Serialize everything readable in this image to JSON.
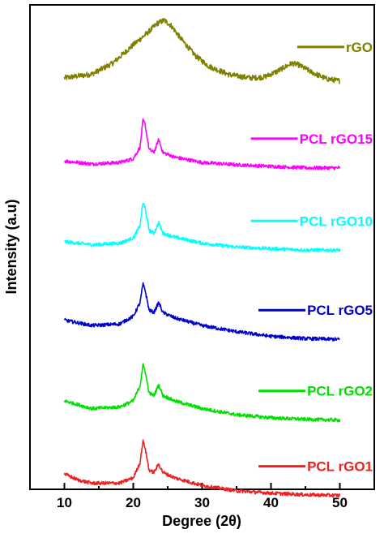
{
  "chart_data": {
    "type": "line",
    "xlabel": "Degree (2θ)",
    "ylabel": "Intensity (a.u)",
    "xlim": [
      5,
      55
    ],
    "xticks": [
      10,
      20,
      30,
      40,
      50
    ],
    "ylim": [
      0,
      6.3
    ],
    "y_ticks_labeled": false,
    "grid": false,
    "legend": "inline labels to the right of each curve",
    "series": [
      {
        "name": "rGO",
        "color": "#808000",
        "offset": 5.3,
        "points": [
          [
            10,
            0.05
          ],
          [
            14,
            0.1
          ],
          [
            17,
            0.24
          ],
          [
            20,
            0.48
          ],
          [
            22,
            0.63
          ],
          [
            23.5,
            0.76
          ],
          [
            24.5,
            0.8
          ],
          [
            25.5,
            0.73
          ],
          [
            27,
            0.55
          ],
          [
            29,
            0.34
          ],
          [
            31,
            0.2
          ],
          [
            34,
            0.09
          ],
          [
            37,
            0.05
          ],
          [
            39,
            0.06
          ],
          [
            41,
            0.14
          ],
          [
            43,
            0.24
          ],
          [
            44,
            0.22
          ],
          [
            46,
            0.12
          ],
          [
            48,
            0.04
          ],
          [
            50,
            0.01
          ]
        ]
      },
      {
        "name": "PCL rGO15",
        "color": "#ff00ff",
        "offset": 4.2,
        "points": [
          [
            10,
            0.07
          ],
          [
            14,
            0.03
          ],
          [
            18,
            0.05
          ],
          [
            20,
            0.1
          ],
          [
            21,
            0.25
          ],
          [
            21.4,
            0.6
          ],
          [
            21.7,
            0.55
          ],
          [
            22.3,
            0.22
          ],
          [
            23,
            0.18
          ],
          [
            23.7,
            0.35
          ],
          [
            24.3,
            0.18
          ],
          [
            26,
            0.12
          ],
          [
            30,
            0.05
          ],
          [
            35,
            0.02
          ],
          [
            40,
            0.0
          ],
          [
            45,
            -0.02
          ],
          [
            50,
            -0.02
          ]
        ]
      },
      {
        "name": "PCL rGO10",
        "color": "#00ffff",
        "offset": 3.15,
        "points": [
          [
            10,
            0.07
          ],
          [
            14,
            0.03
          ],
          [
            18,
            0.05
          ],
          [
            20,
            0.12
          ],
          [
            21,
            0.28
          ],
          [
            21.4,
            0.58
          ],
          [
            21.7,
            0.52
          ],
          [
            22.3,
            0.22
          ],
          [
            23,
            0.18
          ],
          [
            23.7,
            0.32
          ],
          [
            24.3,
            0.18
          ],
          [
            26,
            0.13
          ],
          [
            30,
            0.05
          ],
          [
            35,
            0.0
          ],
          [
            40,
            -0.02
          ],
          [
            45,
            -0.04
          ],
          [
            50,
            -0.04
          ]
        ]
      },
      {
        "name": "PCL rGO5",
        "color": "#0000cc",
        "offset": 2.05,
        "points": [
          [
            10,
            0.15
          ],
          [
            14,
            0.08
          ],
          [
            18,
            0.1
          ],
          [
            20,
            0.2
          ],
          [
            21,
            0.38
          ],
          [
            21.4,
            0.62
          ],
          [
            21.7,
            0.55
          ],
          [
            22.3,
            0.28
          ],
          [
            23,
            0.25
          ],
          [
            23.7,
            0.38
          ],
          [
            24.3,
            0.25
          ],
          [
            26,
            0.18
          ],
          [
            30,
            0.08
          ],
          [
            35,
            0.0
          ],
          [
            40,
            -0.06
          ],
          [
            45,
            -0.09
          ],
          [
            50,
            -0.1
          ]
        ]
      },
      {
        "name": "PCL rGO2",
        "color": "#00e000",
        "offset": 1.0,
        "points": [
          [
            10,
            0.15
          ],
          [
            14,
            0.05
          ],
          [
            18,
            0.07
          ],
          [
            20,
            0.15
          ],
          [
            21,
            0.35
          ],
          [
            21.4,
            0.62
          ],
          [
            21.7,
            0.55
          ],
          [
            22.3,
            0.25
          ],
          [
            23,
            0.22
          ],
          [
            23.7,
            0.36
          ],
          [
            24.3,
            0.22
          ],
          [
            26,
            0.15
          ],
          [
            30,
            0.05
          ],
          [
            35,
            -0.03
          ],
          [
            40,
            -0.07
          ],
          [
            45,
            -0.09
          ],
          [
            50,
            -0.1
          ]
        ]
      },
      {
        "name": "PCL rGO1",
        "color": "#ee2020",
        "offset": 0.0,
        "points": [
          [
            10,
            0.2
          ],
          [
            12,
            0.12
          ],
          [
            14,
            0.08
          ],
          [
            18,
            0.08
          ],
          [
            20,
            0.15
          ],
          [
            21,
            0.35
          ],
          [
            21.4,
            0.63
          ],
          [
            21.7,
            0.55
          ],
          [
            22.3,
            0.25
          ],
          [
            23,
            0.22
          ],
          [
            23.7,
            0.33
          ],
          [
            24.3,
            0.22
          ],
          [
            26,
            0.15
          ],
          [
            30,
            0.05
          ],
          [
            35,
            -0.02
          ],
          [
            40,
            -0.05
          ],
          [
            45,
            -0.07
          ],
          [
            50,
            -0.08
          ]
        ]
      }
    ]
  }
}
